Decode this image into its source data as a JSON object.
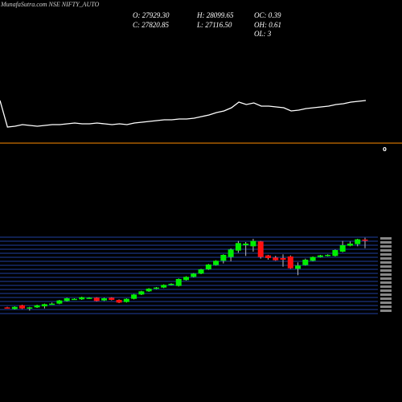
{
  "header": {
    "title": "MunafaSutra.com NSE NIFTY_AUTO",
    "stats": [
      "O: 27929.30",
      "C: 27820.85",
      "H: 28099.65",
      "L: 27116.50",
      "OC: 0.39",
      "OH: 0.61",
      "OL: 3"
    ]
  },
  "chart_data": [
    {
      "type": "line",
      "color": "#ffffff",
      "ylim": [
        0,
        100
      ],
      "values": [
        75,
        42,
        43,
        45,
        44,
        43,
        44,
        45,
        45,
        46,
        47,
        46,
        46,
        47,
        46,
        45,
        46,
        45,
        47,
        48,
        49,
        50,
        51,
        51,
        52,
        52,
        53,
        55,
        57,
        60,
        62,
        66,
        73,
        70,
        72,
        68,
        68,
        67,
        66,
        62,
        63,
        65,
        66,
        67,
        68,
        70,
        71,
        73,
        74,
        75
      ],
      "hline": 22,
      "hline_color": "#ff8c00",
      "hline_label": "0"
    },
    {
      "type": "candlestick",
      "up_color": "#00ee00",
      "down_color": "#ff1010",
      "wick_color": "#bbbbbb",
      "grid_color": "#1f3fa0",
      "ylim": [
        21025,
        28150
      ],
      "open": [
        21600,
        21450,
        21800,
        21550,
        21600,
        21700,
        21900,
        21950,
        22200,
        22350,
        22350,
        22450,
        22500,
        22250,
        22500,
        22300,
        22100,
        22400,
        22800,
        23100,
        23350,
        23450,
        23700,
        23600,
        24150,
        24450,
        24750,
        25150,
        25550,
        25950,
        26300,
        26900,
        27400,
        27300,
        27750,
        26450,
        26250,
        26200,
        26350,
        25200,
        25550,
        25950,
        26300,
        26400,
        26400,
        26800,
        27350,
        27500,
        27929.3
      ],
      "close": [
        21550,
        21650,
        21500,
        21600,
        21800,
        21900,
        21950,
        22250,
        22450,
        22400,
        22550,
        22500,
        22200,
        22450,
        22300,
        22050,
        22400,
        22800,
        23100,
        23350,
        23450,
        23700,
        23800,
        24250,
        24450,
        24750,
        25150,
        25600,
        25950,
        26500,
        27000,
        27600,
        27550,
        27800,
        26300,
        26200,
        26000,
        26050,
        25250,
        25500,
        26050,
        26300,
        26450,
        26500,
        26950,
        27400,
        27550,
        27950,
        27820.85
      ],
      "high": [
        21650,
        21700,
        21850,
        21650,
        21850,
        21950,
        22050,
        22300,
        22500,
        22450,
        22600,
        22550,
        22550,
        22500,
        22550,
        22350,
        22450,
        22850,
        23150,
        23400,
        23500,
        23750,
        23850,
        24300,
        24500,
        24800,
        25200,
        25650,
        26000,
        26550,
        27100,
        27800,
        27700,
        28000,
        27800,
        26500,
        26400,
        26550,
        26450,
        25800,
        26150,
        26350,
        26500,
        26550,
        27000,
        27800,
        27750,
        28000,
        28099.65
      ],
      "low": [
        21500,
        21400,
        21450,
        21300,
        21550,
        21500,
        21850,
        21900,
        22150,
        22300,
        22300,
        22400,
        22150,
        22200,
        22250,
        22000,
        22050,
        22350,
        22750,
        23050,
        23300,
        23400,
        23650,
        23550,
        24100,
        24400,
        24700,
        25100,
        25500,
        25700,
        25900,
        26700,
        26400,
        26800,
        26150,
        26050,
        25950,
        25400,
        25200,
        24600,
        25500,
        25900,
        26250,
        26350,
        26350,
        26750,
        27300,
        27300,
        27116.5
      ]
    }
  ]
}
